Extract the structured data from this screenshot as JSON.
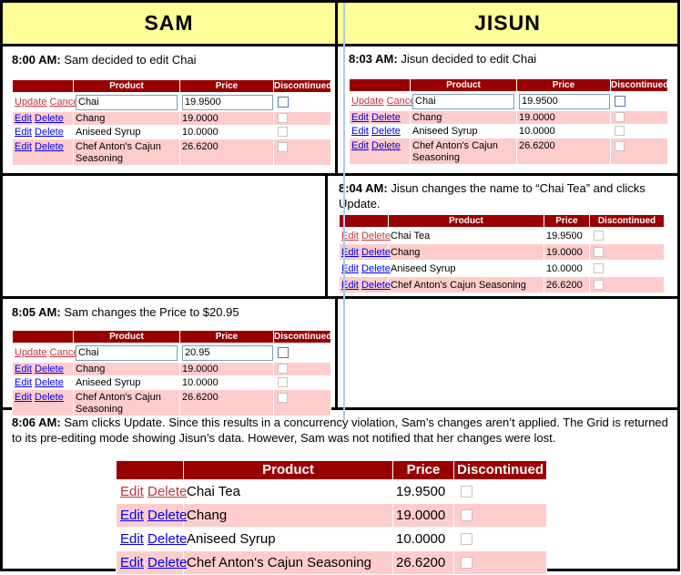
{
  "columns": {
    "left_title": "SAM",
    "right_title": "JISUN"
  },
  "grid": {
    "headers": {
      "actions": "",
      "product": "Product",
      "price": "Price",
      "discontinued": "Discontinued"
    },
    "links": {
      "edit": "Edit",
      "delete": "Delete",
      "update": "Update",
      "cancel": "Cancel"
    }
  },
  "products": {
    "chai_tea": {
      "name": "Chai Tea",
      "price": "19.9500"
    },
    "chang": {
      "name": "Chang",
      "price": "19.0000"
    },
    "aniseed": {
      "name": "Aniseed Syrup",
      "price": "10.0000"
    },
    "chef": {
      "name": "Chef Anton's Cajun Seasoning",
      "price": "26.6200"
    }
  },
  "events": {
    "sam_800": {
      "time": "8:00 AM:",
      "desc": " Sam decided to edit Chai",
      "edit_name": "Chai",
      "edit_price": "19.9500"
    },
    "jisun_803": {
      "time": "8:03 AM:",
      "desc": " Jisun decided to edit Chai",
      "edit_name": "Chai",
      "edit_price": "19.9500"
    },
    "jisun_804": {
      "time": "8:04 AM:",
      "desc": " Jisun changes the name to “Chai Tea” and clicks Update."
    },
    "sam_805": {
      "time": "8:05 AM:",
      "desc": " Sam changes the Price to $20.95",
      "edit_name": "Chai",
      "edit_price": "20.95"
    },
    "final_806": {
      "time": "8:06 AM:",
      "desc": " Sam clicks Update. Since this results in a concurrency violation, Sam’s changes aren’t applied. The Grid is returned to its pre-editing mode showing Jisun’s data. However, Sam was not notified that her changes were lost."
    }
  },
  "colors": {
    "panel_header_bg": "#ffff99",
    "grid_header_bg": "#990000",
    "alt_row_bg": "#ffcccc",
    "link_blue": "#0000ee",
    "link_red": "#c2333f"
  }
}
